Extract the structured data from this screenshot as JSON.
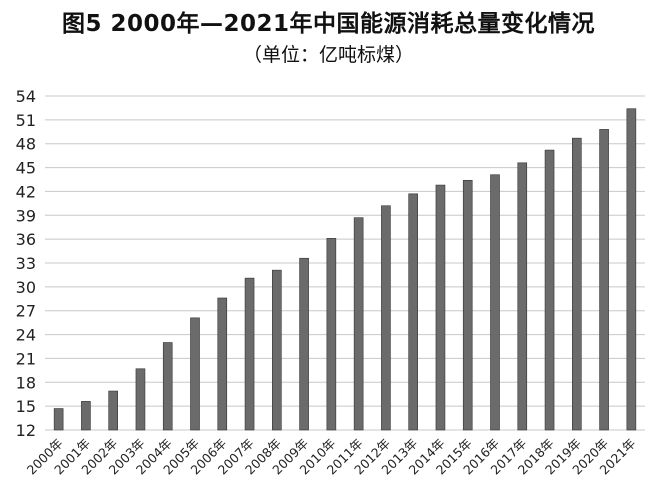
{
  "chart_data": {
    "type": "bar",
    "title": "图5 2000年—2021年中国能源消耗总量变化情况",
    "subtitle": "（单位：亿吨标煤）",
    "xlabel": "",
    "ylabel": "",
    "ylim": [
      12,
      54
    ],
    "yticks": [
      12,
      15,
      18,
      21,
      24,
      27,
      30,
      33,
      36,
      39,
      42,
      45,
      48,
      51,
      54
    ],
    "grid": true,
    "bar_color": "#6b6b6b",
    "categories": [
      "2000年",
      "2001年",
      "2002年",
      "2003年",
      "2004年",
      "2005年",
      "2006年",
      "2007年",
      "2008年",
      "2009年",
      "2010年",
      "2011年",
      "2012年",
      "2013年",
      "2014年",
      "2015年",
      "2016年",
      "2017年",
      "2018年",
      "2019年",
      "2020年",
      "2021年"
    ],
    "values": [
      14.7,
      15.6,
      16.9,
      19.7,
      23.0,
      26.1,
      28.6,
      31.1,
      32.1,
      33.6,
      36.1,
      38.7,
      40.2,
      41.7,
      42.8,
      43.4,
      44.1,
      45.6,
      47.2,
      48.7,
      49.8,
      52.4
    ]
  }
}
